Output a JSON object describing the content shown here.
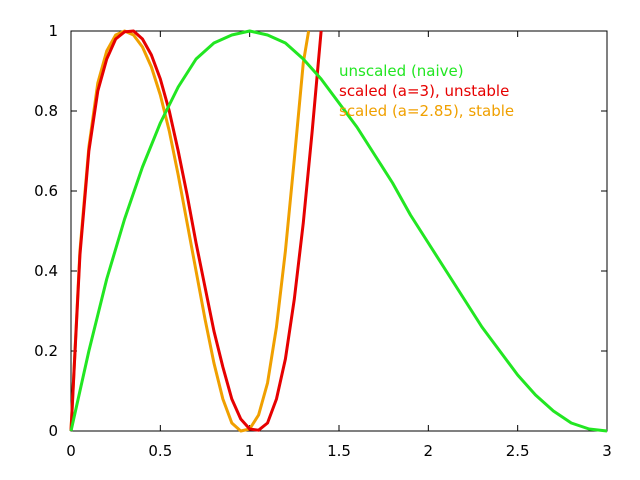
{
  "chart_data": {
    "type": "line",
    "title": "",
    "xlabel": "",
    "ylabel": "",
    "xlim": [
      0,
      3
    ],
    "ylim": [
      0,
      1
    ],
    "x_ticks": [
      "0",
      "0.5",
      "1",
      "1.5",
      "2",
      "2.5",
      "3"
    ],
    "y_ticks": [
      "0",
      "0.2",
      "0.4",
      "0.6",
      "0.8",
      "1"
    ],
    "grid": false,
    "legend_position": "top-right",
    "series": [
      {
        "name": "unscaled (naive)",
        "color": "#22e622",
        "x": [
          0,
          0.1,
          0.2,
          0.3,
          0.4,
          0.5,
          0.6,
          0.7,
          0.8,
          0.9,
          1.0,
          1.1,
          1.2,
          1.3,
          1.4,
          1.5,
          1.6,
          1.7,
          1.8,
          1.9,
          2.0,
          2.1,
          2.2,
          2.3,
          2.4,
          2.5,
          2.6,
          2.7,
          2.8,
          2.9,
          3.0
        ],
        "y": [
          0,
          0.2,
          0.38,
          0.53,
          0.66,
          0.77,
          0.86,
          0.93,
          0.97,
          0.99,
          1.0,
          0.99,
          0.97,
          0.93,
          0.88,
          0.82,
          0.76,
          0.69,
          0.62,
          0.54,
          0.47,
          0.4,
          0.33,
          0.26,
          0.2,
          0.14,
          0.09,
          0.05,
          0.02,
          0.005,
          0
        ]
      },
      {
        "name": "scaled (a=3),  unstable",
        "color": "#e60000",
        "x": [
          0,
          0.05,
          0.1,
          0.15,
          0.2,
          0.25,
          0.3,
          0.35,
          0.4,
          0.45,
          0.5,
          0.55,
          0.6,
          0.65,
          0.7,
          0.75,
          0.8,
          0.85,
          0.9,
          0.95,
          1.0,
          1.05,
          1.1,
          1.15,
          1.2,
          1.25,
          1.3,
          1.35,
          1.4
        ],
        "y": [
          0,
          0.44,
          0.7,
          0.85,
          0.93,
          0.98,
          0.998,
          1.0,
          0.98,
          0.94,
          0.88,
          0.8,
          0.7,
          0.59,
          0.47,
          0.36,
          0.25,
          0.16,
          0.08,
          0.03,
          0.005,
          0.002,
          0.02,
          0.08,
          0.18,
          0.33,
          0.52,
          0.75,
          1.0
        ]
      },
      {
        "name": "scaled (a=2.85), stable",
        "color": "#f0a000",
        "x": [
          0,
          0.05,
          0.1,
          0.15,
          0.2,
          0.25,
          0.3,
          0.35,
          0.4,
          0.45,
          0.5,
          0.55,
          0.6,
          0.65,
          0.7,
          0.75,
          0.8,
          0.85,
          0.9,
          0.95,
          1.0,
          1.05,
          1.1,
          1.15,
          1.2,
          1.25,
          1.3,
          1.33
        ],
        "y": [
          0,
          0.45,
          0.71,
          0.87,
          0.95,
          0.99,
          1.0,
          0.99,
          0.96,
          0.91,
          0.84,
          0.75,
          0.64,
          0.52,
          0.4,
          0.28,
          0.17,
          0.08,
          0.02,
          0.0,
          0.005,
          0.04,
          0.12,
          0.26,
          0.45,
          0.68,
          0.92,
          1.0
        ]
      }
    ]
  }
}
